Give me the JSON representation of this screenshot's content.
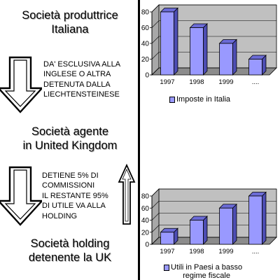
{
  "left": {
    "entity_top": [
      "Società produttrice",
      "Italiana"
    ],
    "note_top": [
      "DA' ESCLUSIVA ALLA",
      "INGLESE O ALTRA",
      "DETENUTA DALLA",
      "LIECHTENSTEINESE"
    ],
    "entity_middle": [
      "Società agente",
      "in United Kingdom"
    ],
    "note_bottom": [
      "DETIENE 5% DI",
      "COMMISSIONI",
      "IL RESTANTE 95%",
      "DI UTILE VA ALLA",
      "HOLDING"
    ],
    "entity_bottom": [
      "Società holding",
      "detenente la UK"
    ]
  },
  "colors": {
    "bar": "#9999ff",
    "plot_bg": "#c0c0c0",
    "outline": "#000000"
  },
  "chart_data": [
    {
      "type": "bar",
      "categories": [
        "1997",
        "1998",
        "1999",
        "...."
      ],
      "values": [
        80,
        60,
        40,
        20
      ],
      "legend": [
        "Imposte in Italia"
      ],
      "ylim": [
        0,
        80
      ],
      "yticks": [
        "0",
        "20",
        "40",
        "60",
        "80"
      ],
      "grid": true,
      "style": "3d",
      "legend_placement": "bottom"
    },
    {
      "type": "bar",
      "categories": [
        "1997",
        "1998",
        "1999",
        "...."
      ],
      "values": [
        20,
        40,
        60,
        80
      ],
      "legend": [
        "Utili in Paesi a basso",
        "regime fiscale"
      ],
      "ylim": [
        0,
        80
      ],
      "yticks": [
        "0",
        "20",
        "40",
        "60",
        "80"
      ],
      "grid": true,
      "style": "3d",
      "legend_placement": "bottom"
    }
  ]
}
